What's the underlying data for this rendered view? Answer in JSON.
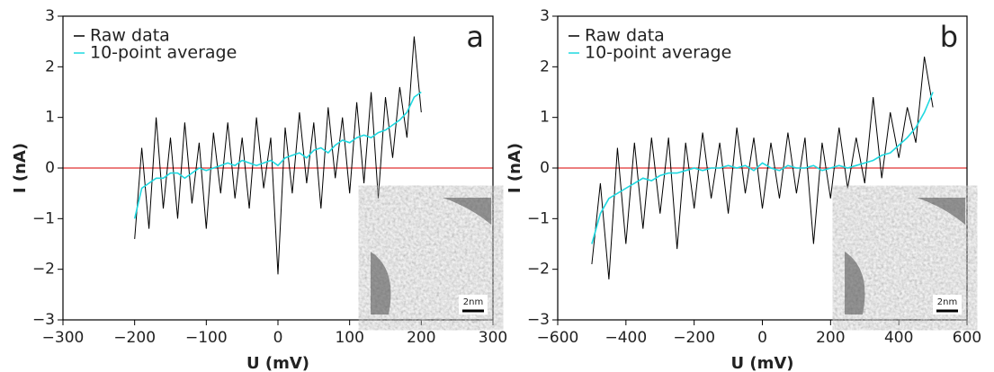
{
  "chart_data": [
    {
      "type": "line",
      "panel_label": "a",
      "xlabel": "U (mV)",
      "ylabel": "I (nA)",
      "inset_scale_label": "2nm",
      "xlim": [
        -300,
        300
      ],
      "ylim": [
        -3,
        3
      ],
      "xticks": [
        {
          "value": -300,
          "label": "−300"
        },
        {
          "value": -200,
          "label": "−200"
        },
        {
          "value": -100,
          "label": "−100"
        },
        0,
        100,
        200,
        300
      ],
      "yticks": [
        {
          "value": -3,
          "label": "−3"
        },
        {
          "value": -2,
          "label": "−2"
        },
        {
          "value": -1,
          "label": "−1"
        },
        0,
        1,
        2,
        3
      ],
      "reference_line": {
        "value": 0,
        "color": "#e03030"
      },
      "x": [
        -200,
        -190,
        -180,
        -170,
        -160,
        -150,
        -140,
        -130,
        -120,
        -110,
        -100,
        -90,
        -80,
        -70,
        -60,
        -50,
        -40,
        -30,
        -20,
        -10,
        0,
        10,
        20,
        30,
        40,
        50,
        60,
        70,
        80,
        90,
        100,
        110,
        120,
        130,
        140,
        150,
        160,
        170,
        180,
        190,
        200
      ],
      "series": [
        {
          "name": "Raw data",
          "color": "#000000",
          "values": [
            -1.4,
            0.4,
            -1.2,
            1.0,
            -0.8,
            0.6,
            -1.0,
            0.9,
            -0.7,
            0.5,
            -1.2,
            0.7,
            -0.5,
            0.9,
            -0.6,
            0.6,
            -0.8,
            1.0,
            -0.4,
            0.6,
            -2.1,
            0.8,
            -0.5,
            1.1,
            -0.3,
            0.9,
            -0.8,
            1.2,
            -0.2,
            1.0,
            -0.5,
            1.3,
            -0.3,
            1.5,
            -0.6,
            1.4,
            0.2,
            1.6,
            0.6,
            2.6,
            1.1
          ]
        },
        {
          "name": "10-point average",
          "color": "#1ed8e0",
          "values": [
            -1.0,
            -0.4,
            -0.3,
            -0.2,
            -0.2,
            -0.1,
            -0.1,
            -0.2,
            -0.1,
            0,
            -0.05,
            0,
            0.05,
            0.1,
            0.05,
            0.15,
            0.1,
            0.05,
            0.1,
            0.15,
            0.05,
            0.2,
            0.25,
            0.3,
            0.2,
            0.35,
            0.4,
            0.3,
            0.45,
            0.55,
            0.5,
            0.6,
            0.65,
            0.6,
            0.7,
            0.75,
            0.85,
            0.95,
            1.1,
            1.4,
            1.5
          ]
        }
      ]
    },
    {
      "type": "line",
      "panel_label": "b",
      "xlabel": "U (mV)",
      "ylabel": "I (nA)",
      "inset_scale_label": "2nm",
      "xlim": [
        -600,
        600
      ],
      "ylim": [
        -3,
        3
      ],
      "xticks": [
        {
          "value": -600,
          "label": "−600"
        },
        {
          "value": -400,
          "label": "−400"
        },
        {
          "value": -200,
          "label": "−200"
        },
        0,
        200,
        400,
        600
      ],
      "yticks": [
        {
          "value": -3,
          "label": "−3"
        },
        {
          "value": -2,
          "label": "−2"
        },
        {
          "value": -1,
          "label": "−1"
        },
        0,
        1,
        2,
        3
      ],
      "reference_line": {
        "value": 0,
        "color": "#e03030"
      },
      "x": [
        -500,
        -475,
        -450,
        -425,
        -400,
        -375,
        -350,
        -325,
        -300,
        -275,
        -250,
        -225,
        -200,
        -175,
        -150,
        -125,
        -100,
        -75,
        -50,
        -25,
        0,
        25,
        50,
        75,
        100,
        125,
        150,
        175,
        200,
        225,
        250,
        275,
        300,
        325,
        350,
        375,
        400,
        425,
        450,
        475,
        500
      ],
      "series": [
        {
          "name": "Raw data",
          "color": "#000000",
          "values": [
            -1.9,
            -0.3,
            -2.2,
            0.4,
            -1.5,
            0.5,
            -1.2,
            0.6,
            -0.9,
            0.6,
            -1.6,
            0.5,
            -0.8,
            0.7,
            -0.6,
            0.5,
            -0.9,
            0.8,
            -0.5,
            0.6,
            -0.8,
            0.5,
            -0.6,
            0.7,
            -0.5,
            0.6,
            -1.5,
            0.5,
            -0.6,
            0.8,
            -0.4,
            0.6,
            -0.3,
            1.4,
            -0.2,
            1.1,
            0.2,
            1.2,
            0.5,
            2.2,
            1.2
          ]
        },
        {
          "name": "10-point average",
          "color": "#1ed8e0",
          "values": [
            -1.5,
            -0.9,
            -0.6,
            -0.5,
            -0.4,
            -0.3,
            -0.2,
            -0.25,
            -0.15,
            -0.1,
            -0.1,
            -0.05,
            0,
            -0.05,
            0,
            0,
            0.05,
            0,
            0.05,
            -0.05,
            0.1,
            0,
            -0.05,
            0.05,
            0,
            0,
            0.05,
            -0.05,
            0,
            0.05,
            0,
            0.05,
            0.1,
            0.15,
            0.25,
            0.3,
            0.45,
            0.6,
            0.8,
            1.1,
            1.5
          ]
        }
      ]
    }
  ]
}
